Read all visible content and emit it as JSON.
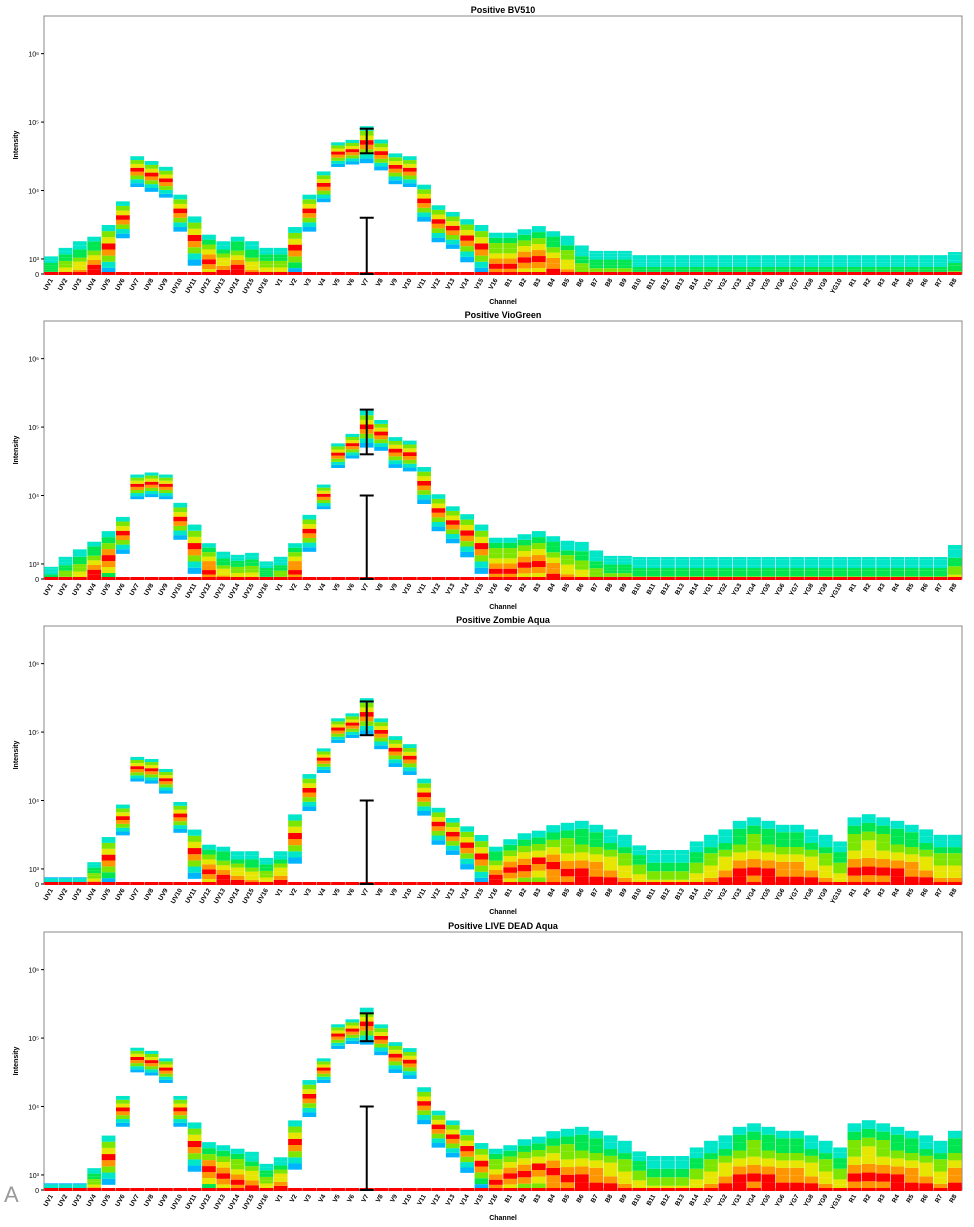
{
  "panel_label": "A",
  "chart_data": [
    {
      "type": "heatmap",
      "title": "Positive BV510",
      "xlabel": "Channel",
      "ylabel": "Intensity",
      "yscale": "log",
      "ylim": [
        0,
        1000000
      ],
      "yticks": [
        "0",
        "10³",
        "10⁴",
        "10⁵",
        "10⁶"
      ],
      "grid": false,
      "colors": [
        "#0050ff",
        "#00b4ff",
        "#00e6c8",
        "#00e650",
        "#7ce600",
        "#e6e600",
        "#ff9600",
        "#ff0000"
      ],
      "channels": [
        "UV1",
        "UV2",
        "UV3",
        "UV4",
        "UV5",
        "UV6",
        "UV7",
        "UV8",
        "UV9",
        "UV10",
        "UV11",
        "UV12",
        "UV13",
        "UV14",
        "UV15",
        "UV16",
        "V1",
        "V2",
        "V3",
        "V4",
        "V5",
        "V6",
        "V7",
        "V8",
        "V9",
        "V10",
        "V11",
        "V12",
        "V13",
        "V14",
        "V15",
        "V16",
        "B1",
        "B2",
        "B3",
        "B4",
        "B5",
        "B6",
        "B7",
        "B8",
        "B9",
        "B10",
        "B11",
        "B12",
        "B13",
        "B14",
        "YG1",
        "YG2",
        "YG3",
        "YG4",
        "YG5",
        "YG6",
        "YG7",
        "YG8",
        "YG9",
        "YG10",
        "R1",
        "R2",
        "R3",
        "R4",
        "R5",
        "R6",
        "R7",
        "R8"
      ],
      "medians": [
        300,
        400,
        500,
        700,
        1500,
        4000,
        20000,
        17000,
        14000,
        5000,
        2000,
        900,
        600,
        700,
        500,
        400,
        400,
        1400,
        5000,
        12000,
        35000,
        38000,
        50000,
        35000,
        22000,
        20000,
        7000,
        3500,
        2800,
        2000,
        1500,
        800,
        800,
        900,
        1000,
        700,
        500,
        300,
        250,
        250,
        250,
        180,
        180,
        180,
        180,
        180,
        180,
        180,
        180,
        180,
        180,
        180,
        180,
        180,
        180,
        180,
        180,
        180,
        180,
        180,
        180,
        180,
        180,
        200
      ],
      "spread": [
        0.7,
        0.7,
        0.7,
        0.6,
        0.4,
        0.3,
        0.25,
        0.25,
        0.25,
        0.3,
        0.4,
        0.5,
        0.6,
        0.6,
        0.7,
        0.7,
        0.7,
        0.4,
        0.3,
        0.25,
        0.2,
        0.2,
        0.3,
        0.25,
        0.25,
        0.25,
        0.3,
        0.3,
        0.3,
        0.35,
        0.4,
        0.6,
        0.6,
        0.6,
        0.6,
        0.7,
        0.8,
        0.9,
        0.9,
        0.9,
        0.9,
        1,
        1,
        1,
        1,
        1,
        1,
        1,
        1,
        1,
        1,
        1,
        1,
        1,
        1,
        1,
        1,
        1,
        1,
        1,
        1,
        1,
        1,
        1
      ],
      "error_bars": [
        {
          "channel": "V7",
          "low": 35000,
          "high": 80000
        },
        {
          "channel": "V7",
          "low": 0,
          "high": 4000
        }
      ]
    },
    {
      "type": "heatmap",
      "title": "Positive VioGreen",
      "xlabel": "Channel",
      "ylabel": "Intensity",
      "yscale": "log",
      "ylim": [
        0,
        1000000
      ],
      "yticks": [
        "0",
        "10³",
        "10⁴",
        "10⁵",
        "10⁶"
      ],
      "grid": false,
      "colors": [
        "#0050ff",
        "#00b4ff",
        "#00e6c8",
        "#00e650",
        "#7ce600",
        "#e6e600",
        "#ff9600",
        "#ff0000"
      ],
      "channels": [
        "UV1",
        "UV2",
        "UV3",
        "UV4",
        "UV5",
        "UV6",
        "UV7",
        "UV8",
        "UV9",
        "UV10",
        "UV11",
        "UV12",
        "UV13",
        "UV14",
        "UV15",
        "UV16",
        "V1",
        "V2",
        "V3",
        "V4",
        "V5",
        "V6",
        "V7",
        "V8",
        "V9",
        "V10",
        "V11",
        "V12",
        "V13",
        "V14",
        "V15",
        "V16",
        "B1",
        "B2",
        "B3",
        "B4",
        "B5",
        "B6",
        "B7",
        "B8",
        "B9",
        "B10",
        "B11",
        "B12",
        "B13",
        "B14",
        "YG1",
        "YG2",
        "YG3",
        "YG4",
        "YG5",
        "YG6",
        "YG7",
        "YG8",
        "YG9",
        "YG10",
        "R1",
        "R2",
        "R3",
        "R4",
        "R5",
        "R6",
        "R7",
        "R8"
      ],
      "medians": [
        250,
        350,
        450,
        700,
        1200,
        2800,
        14000,
        15000,
        14000,
        4500,
        1800,
        800,
        500,
        450,
        400,
        300,
        350,
        800,
        3000,
        10000,
        40000,
        55000,
        100000,
        80000,
        45000,
        40000,
        15000,
        6000,
        4000,
        2800,
        1800,
        800,
        800,
        900,
        1000,
        700,
        500,
        400,
        300,
        250,
        250,
        200,
        200,
        200,
        200,
        200,
        200,
        200,
        200,
        200,
        200,
        200,
        200,
        200,
        200,
        200,
        200,
        200,
        200,
        200,
        200,
        200,
        200,
        300
      ],
      "spread": [
        0.7,
        0.7,
        0.7,
        0.6,
        0.5,
        0.3,
        0.2,
        0.2,
        0.2,
        0.3,
        0.4,
        0.5,
        0.6,
        0.6,
        0.7,
        0.7,
        0.7,
        0.5,
        0.3,
        0.2,
        0.2,
        0.2,
        0.3,
        0.25,
        0.25,
        0.25,
        0.3,
        0.3,
        0.3,
        0.35,
        0.4,
        0.6,
        0.6,
        0.6,
        0.6,
        0.7,
        0.8,
        0.9,
        0.9,
        0.9,
        0.9,
        1,
        1,
        1,
        1,
        1,
        1,
        1,
        1,
        1,
        1,
        1,
        1,
        1,
        1,
        1,
        1,
        1,
        1,
        1,
        1,
        1,
        1,
        1
      ],
      "error_bars": [
        {
          "channel": "V7",
          "low": 40000,
          "high": 180000
        },
        {
          "channel": "V7",
          "low": 0,
          "high": 10000
        }
      ]
    },
    {
      "type": "heatmap",
      "title": "Positive Zombie Aqua",
      "xlabel": "Channel",
      "ylabel": "Intensity",
      "yscale": "log",
      "ylim": [
        0,
        1000000
      ],
      "yticks": [
        "0",
        "10³",
        "10⁴",
        "10⁵",
        "10⁶"
      ],
      "grid": false,
      "colors": [
        "#0050ff",
        "#00b4ff",
        "#00e6c8",
        "#00e650",
        "#7ce600",
        "#e6e600",
        "#ff9600",
        "#ff0000"
      ],
      "channels": [
        "UV1",
        "UV2",
        "UV3",
        "UV4",
        "UV5",
        "UV6",
        "UV7",
        "UV8",
        "UV9",
        "UV10",
        "UV11",
        "UV12",
        "UV13",
        "UV14",
        "UV15",
        "UV16",
        "V1",
        "V2",
        "V3",
        "V4",
        "V5",
        "V6",
        "V7",
        "V8",
        "V9",
        "V10",
        "V11",
        "V12",
        "V13",
        "V14",
        "V15",
        "V16",
        "B1",
        "B2",
        "B3",
        "B4",
        "B5",
        "B6",
        "B7",
        "B8",
        "B9",
        "B10",
        "B11",
        "B12",
        "B13",
        "B14",
        "YG1",
        "YG2",
        "YG3",
        "YG4",
        "YG5",
        "YG6",
        "YG7",
        "YG8",
        "YG9",
        "YG10",
        "R1",
        "R2",
        "R3",
        "R4",
        "R5",
        "R6",
        "R7",
        "R8"
      ],
      "medians": [
        250,
        250,
        250,
        500,
        1400,
        5500,
        30000,
        28000,
        20000,
        6000,
        1800,
        900,
        700,
        600,
        500,
        400,
        600,
        3000,
        14000,
        40000,
        110000,
        130000,
        180000,
        100000,
        55000,
        42000,
        12000,
        4500,
        3200,
        2200,
        1500,
        700,
        900,
        1100,
        1200,
        1000,
        900,
        800,
        700,
        600,
        500,
        350,
        300,
        300,
        300,
        400,
        500,
        600,
        800,
        900,
        800,
        700,
        700,
        600,
        500,
        400,
        900,
        1000,
        900,
        800,
        700,
        600,
        500,
        500
      ],
      "spread": [
        0.6,
        0.6,
        0.6,
        0.5,
        0.4,
        0.25,
        0.2,
        0.2,
        0.2,
        0.25,
        0.4,
        0.5,
        0.6,
        0.6,
        0.7,
        0.7,
        0.6,
        0.4,
        0.3,
        0.2,
        0.2,
        0.2,
        0.3,
        0.25,
        0.25,
        0.25,
        0.3,
        0.3,
        0.3,
        0.35,
        0.4,
        0.6,
        0.6,
        0.6,
        0.6,
        0.8,
        0.9,
        1,
        1,
        1,
        1,
        1,
        1,
        1,
        1,
        1,
        1,
        1,
        1,
        1,
        1,
        1,
        1,
        1,
        1,
        1,
        1,
        1,
        1,
        1,
        1,
        1,
        1,
        1
      ],
      "error_bars": [
        {
          "channel": "V7",
          "low": 90000,
          "high": 280000
        },
        {
          "channel": "V7",
          "low": 0,
          "high": 10000
        }
      ]
    },
    {
      "type": "heatmap",
      "title": "Positive LIVE DEAD Aqua",
      "xlabel": "Channel",
      "ylabel": "Intensity",
      "yscale": "log",
      "ylim": [
        0,
        1000000
      ],
      "yticks": [
        "0",
        "10³",
        "10⁴",
        "10⁵",
        "10⁶"
      ],
      "grid": false,
      "colors": [
        "#0050ff",
        "#00b4ff",
        "#00e6c8",
        "#00e650",
        "#7ce600",
        "#e6e600",
        "#ff9600",
        "#ff0000"
      ],
      "channels": [
        "UV1",
        "UV2",
        "UV3",
        "UV4",
        "UV5",
        "UV6",
        "UV7",
        "UV8",
        "UV9",
        "UV10",
        "UV11",
        "UV12",
        "UV13",
        "UV14",
        "UV15",
        "UV16",
        "V1",
        "V2",
        "V3",
        "V4",
        "V5",
        "V6",
        "V7",
        "V8",
        "V9",
        "V10",
        "V11",
        "V12",
        "V13",
        "V14",
        "V15",
        "V16",
        "B1",
        "B2",
        "B3",
        "B4",
        "B5",
        "B6",
        "B7",
        "B8",
        "B9",
        "B10",
        "B11",
        "B12",
        "B13",
        "B14",
        "YG1",
        "YG2",
        "YG3",
        "YG4",
        "YG5",
        "YG6",
        "YG7",
        "YG8",
        "YG9",
        "YG10",
        "R1",
        "R2",
        "R3",
        "R4",
        "R5",
        "R6",
        "R7",
        "R8"
      ],
      "medians": [
        250,
        250,
        250,
        500,
        1800,
        9000,
        50000,
        45000,
        35000,
        9000,
        2800,
        1200,
        900,
        800,
        600,
        400,
        600,
        3000,
        14000,
        35000,
        110000,
        130000,
        160000,
        100000,
        55000,
        45000,
        11000,
        5000,
        3600,
        2400,
        1400,
        800,
        900,
        1100,
        1200,
        1000,
        900,
        800,
        700,
        600,
        500,
        350,
        300,
        300,
        300,
        400,
        500,
        600,
        800,
        900,
        800,
        700,
        700,
        600,
        500,
        400,
        900,
        1000,
        900,
        800,
        700,
        600,
        500,
        700
      ],
      "spread": [
        0.6,
        0.6,
        0.6,
        0.5,
        0.4,
        0.25,
        0.2,
        0.2,
        0.2,
        0.25,
        0.4,
        0.5,
        0.6,
        0.6,
        0.7,
        0.7,
        0.6,
        0.4,
        0.3,
        0.2,
        0.2,
        0.2,
        0.3,
        0.25,
        0.25,
        0.25,
        0.3,
        0.3,
        0.3,
        0.35,
        0.4,
        0.6,
        0.6,
        0.6,
        0.6,
        0.8,
        0.9,
        1,
        1,
        1,
        1,
        1,
        1,
        1,
        1,
        1,
        1,
        1,
        1,
        1,
        1,
        1,
        1,
        1,
        1,
        1,
        1,
        1,
        1,
        1,
        1,
        1,
        1,
        1
      ],
      "error_bars": [
        {
          "channel": "V7",
          "low": 90000,
          "high": 230000
        },
        {
          "channel": "V7",
          "low": 0,
          "high": 10000
        }
      ]
    }
  ]
}
